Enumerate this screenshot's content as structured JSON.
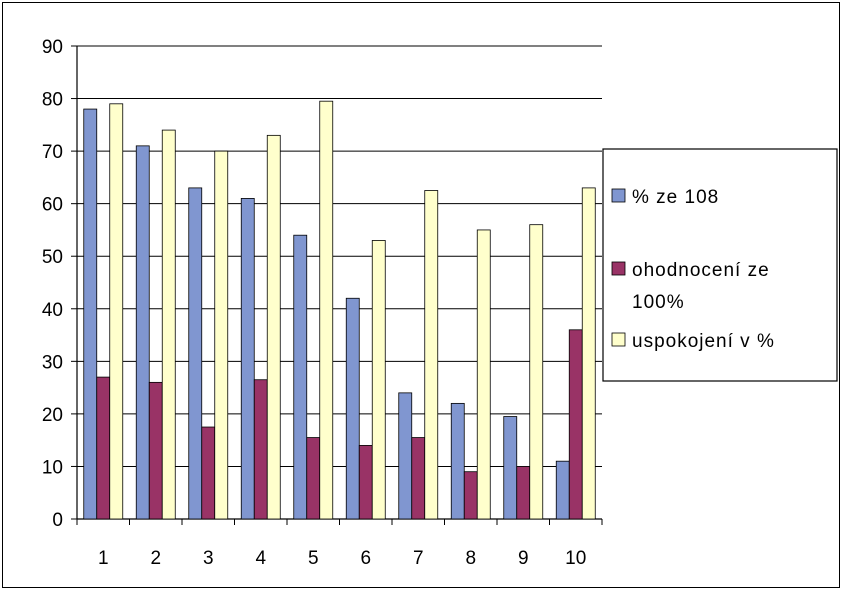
{
  "chart_data": {
    "type": "bar",
    "categories": [
      "1",
      "2",
      "3",
      "4",
      "5",
      "6",
      "7",
      "8",
      "9",
      "10"
    ],
    "series": [
      {
        "name": "% ze 108",
        "color": "#8096D0",
        "values": [
          78,
          71,
          63,
          61,
          54,
          42,
          24,
          22,
          19.5,
          11
        ]
      },
      {
        "name": "ohodnocení ze 100%",
        "color": "#993366",
        "values": [
          27,
          26,
          17.5,
          26.5,
          15.5,
          14,
          15.5,
          9,
          10,
          36
        ]
      },
      {
        "name": "uspokojení v %",
        "color": "#FFFFCC",
        "values": [
          79,
          74,
          70,
          73,
          79.5,
          53,
          62.5,
          55,
          56,
          63
        ]
      }
    ],
    "ylim": [
      0,
      90
    ],
    "yticks": [
      0,
      10,
      20,
      30,
      40,
      50,
      60,
      70,
      80,
      90
    ],
    "grid": true,
    "legend_position": "right",
    "title": "",
    "xlabel": "",
    "ylabel": ""
  },
  "legend": {
    "items": [
      {
        "lines": [
          "% ze 108"
        ]
      },
      {
        "lines": [
          "ohodnocení ze",
          "100%"
        ]
      },
      {
        "lines": [
          "uspokojení v %"
        ]
      }
    ]
  }
}
